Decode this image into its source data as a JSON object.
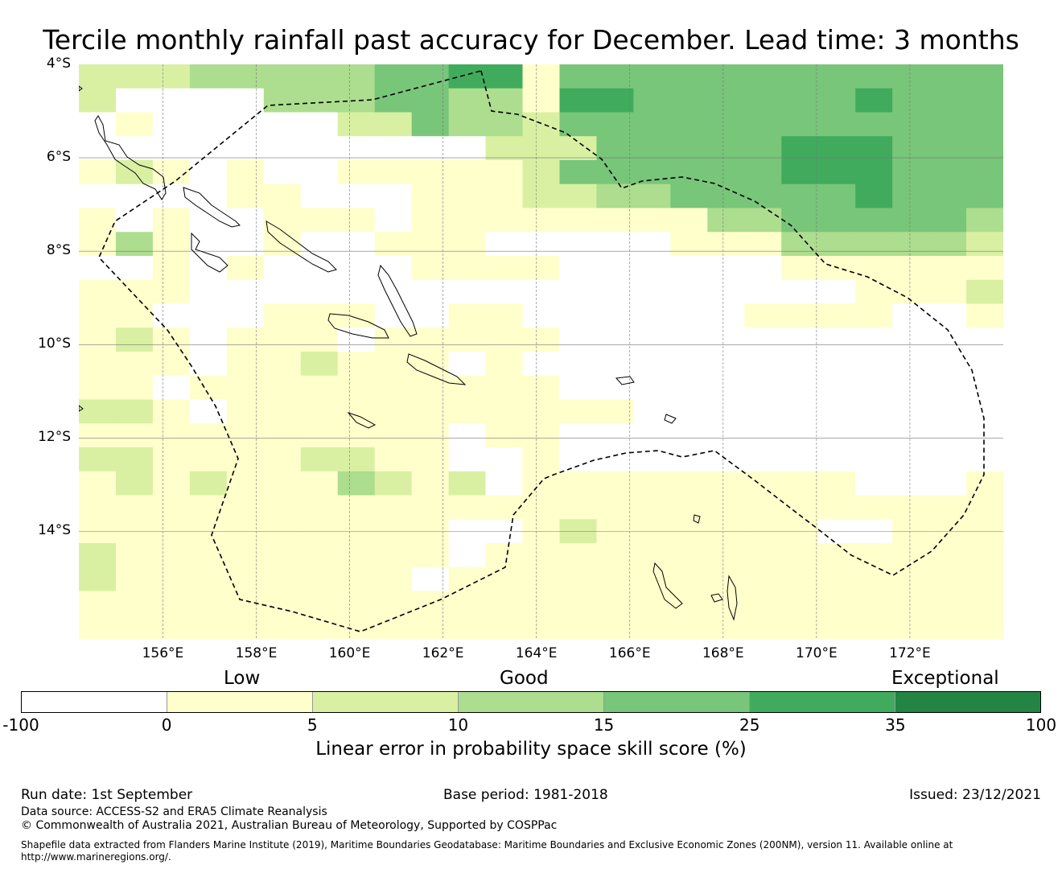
{
  "title": "Tercile monthly rainfall past accuracy for December. Lead time: 3 months",
  "map": {
    "lat_labels": [
      "4°S",
      "6°S",
      "8°S",
      "10°S",
      "12°S",
      "14°S"
    ],
    "lon_labels": [
      "156°E",
      "158°E",
      "160°E",
      "162°E",
      "164°E",
      "166°E",
      "168°E",
      "170°E",
      "172°E"
    ],
    "lon_range": [
      154.2,
      174.0
    ],
    "lat_range": [
      -4.0,
      -16.3
    ],
    "colors": [
      "#ffffff",
      "#ffffcc",
      "#d9f0a3",
      "#addd8e",
      "#78c679",
      "#41ab5d",
      "#238443"
    ],
    "grid_cells": [
      "2223333344551444444444444",
      "2000033344331554444445444",
      "0100000224332444444444444",
      "0000000000022244444555444",
      "1210100111112444444555444",
      "0000110001112233444445444",
      "1010011101111111133444443",
      "1310010011100000111333332",
      "0010100001111000000111111",
      "1110000000000000000001112",
      "1100011100110000001111001",
      "1210111011111000000000000",
      "1110112111010000000000000",
      "1101111111111000000000000",
      "2210111111111110000000000",
      "1111111111011000000000000",
      "2211112211001000000000000",
      "1212111321201111111110001",
      "1111111111111111111111111",
      "1111111111001211111100111",
      "2111111111011111111111111",
      "2111111110111111111111111",
      "1111111111111111111111111",
      "1111111111111111111111111"
    ]
  },
  "colorbar": {
    "categories": [
      "Low",
      "Good",
      "Exceptional"
    ],
    "ticks": [
      "-100",
      "0",
      "5",
      "10",
      "15",
      "25",
      "35",
      "100"
    ],
    "title": "Linear error in probability space skill score (%)"
  },
  "footer": {
    "run_date": "Run date: 1st September",
    "base_period": "Base period: 1981-2018",
    "issued": "Issued: 23/12/2021",
    "data_source": "Data source: ACCESS-S2 and ERA5 Climate Reanalysis",
    "copyright": "© Commonwealth of Australia 2021, Australian Bureau of Meteorology, Supported by COSPPac",
    "shapefile_line1": "Shapefile data extracted from Flanders Marine Institute (2019), Maritime Boundaries Geodatabase: Maritime Boundaries and Exclusive Economic Zones (200NM), version 11. Available online at",
    "shapefile_line2": "http://www.marineregions.org/."
  }
}
